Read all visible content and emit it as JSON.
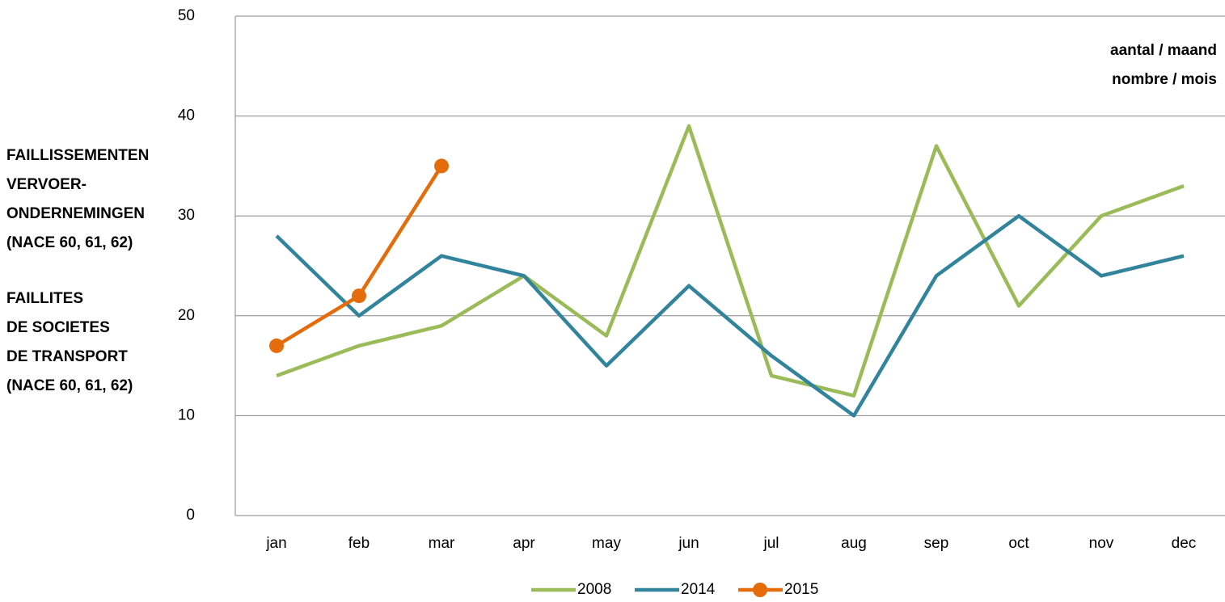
{
  "chart_data": {
    "type": "line",
    "y_label_lines": [
      "FAILLISSEMENTEN",
      "VERVOER-",
      "ONDERNEMINGEN",
      "(NACE 60, 61, 62)",
      "FAILLITES",
      "DE SOCIETES",
      "DE TRANSPORT",
      "(NACE 60, 61, 62)"
    ],
    "unit_lines": [
      "aantal / maand",
      "nombre / mois"
    ],
    "categories": [
      "jan",
      "feb",
      "mar",
      "apr",
      "may",
      "jun",
      "jul",
      "aug",
      "sep",
      "oct",
      "nov",
      "dec"
    ],
    "series": [
      {
        "name": "2008",
        "color": "#9bbb59",
        "values": [
          14,
          17,
          19,
          24,
          18,
          39,
          14,
          12,
          37,
          21,
          30,
          33
        ]
      },
      {
        "name": "2014",
        "color": "#31849b",
        "values": [
          28,
          20,
          26,
          24,
          15,
          23,
          16,
          10,
          24,
          30,
          24,
          26
        ]
      },
      {
        "name": "2015",
        "color": "#e46c0a",
        "markers": true,
        "values": [
          17,
          22,
          35,
          null,
          null,
          null,
          null,
          null,
          null,
          null,
          null,
          null
        ]
      }
    ],
    "ylim": [
      0,
      50
    ],
    "yticks": [
      0,
      10,
      20,
      30,
      40,
      50
    ],
    "grid": true
  }
}
